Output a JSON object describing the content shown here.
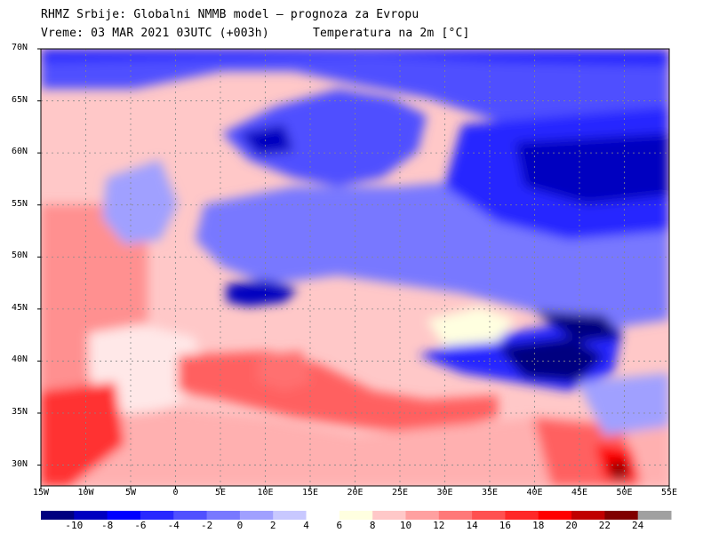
{
  "header": {
    "line1": "RHMZ Srbije: Globalni NMMB model — prognoza za Evropu",
    "line2": "Vreme: 03 MAR 2021 03UTC (+003h)",
    "line2_right": "Temperatura na 2m [°C]"
  },
  "map": {
    "projection": "lat-lon",
    "lon_range": [
      -15,
      55
    ],
    "lat_range": [
      28,
      70
    ],
    "grid": true,
    "lat_ticks": [
      "70N",
      "65N",
      "60N",
      "55N",
      "50N",
      "45N",
      "40N",
      "35N",
      "30N"
    ],
    "lon_ticks": [
      "15W",
      "10W",
      "5W",
      "0",
      "5E",
      "10E",
      "15E",
      "20E",
      "25E",
      "30E",
      "35E",
      "40E",
      "45E",
      "50E",
      "55E"
    ]
  },
  "colorbar": {
    "labels": [
      "-10",
      "-8",
      "-6",
      "-4",
      "-2",
      "0",
      "2",
      "4",
      "6",
      "8",
      "10",
      "12",
      "14",
      "16",
      "18",
      "20",
      "22",
      "24"
    ],
    "colors": [
      "#000080",
      "#0000c0",
      "#0000ff",
      "#2828ff",
      "#5050ff",
      "#7878ff",
      "#a0a0ff",
      "#c8c8ff",
      "#ffffff",
      "#ffffe0",
      "#ffc8c8",
      "#ffa0a0",
      "#ff7878",
      "#ff5050",
      "#ff2828",
      "#ff0000",
      "#c00000",
      "#800000",
      "#a0a0a0"
    ]
  }
}
